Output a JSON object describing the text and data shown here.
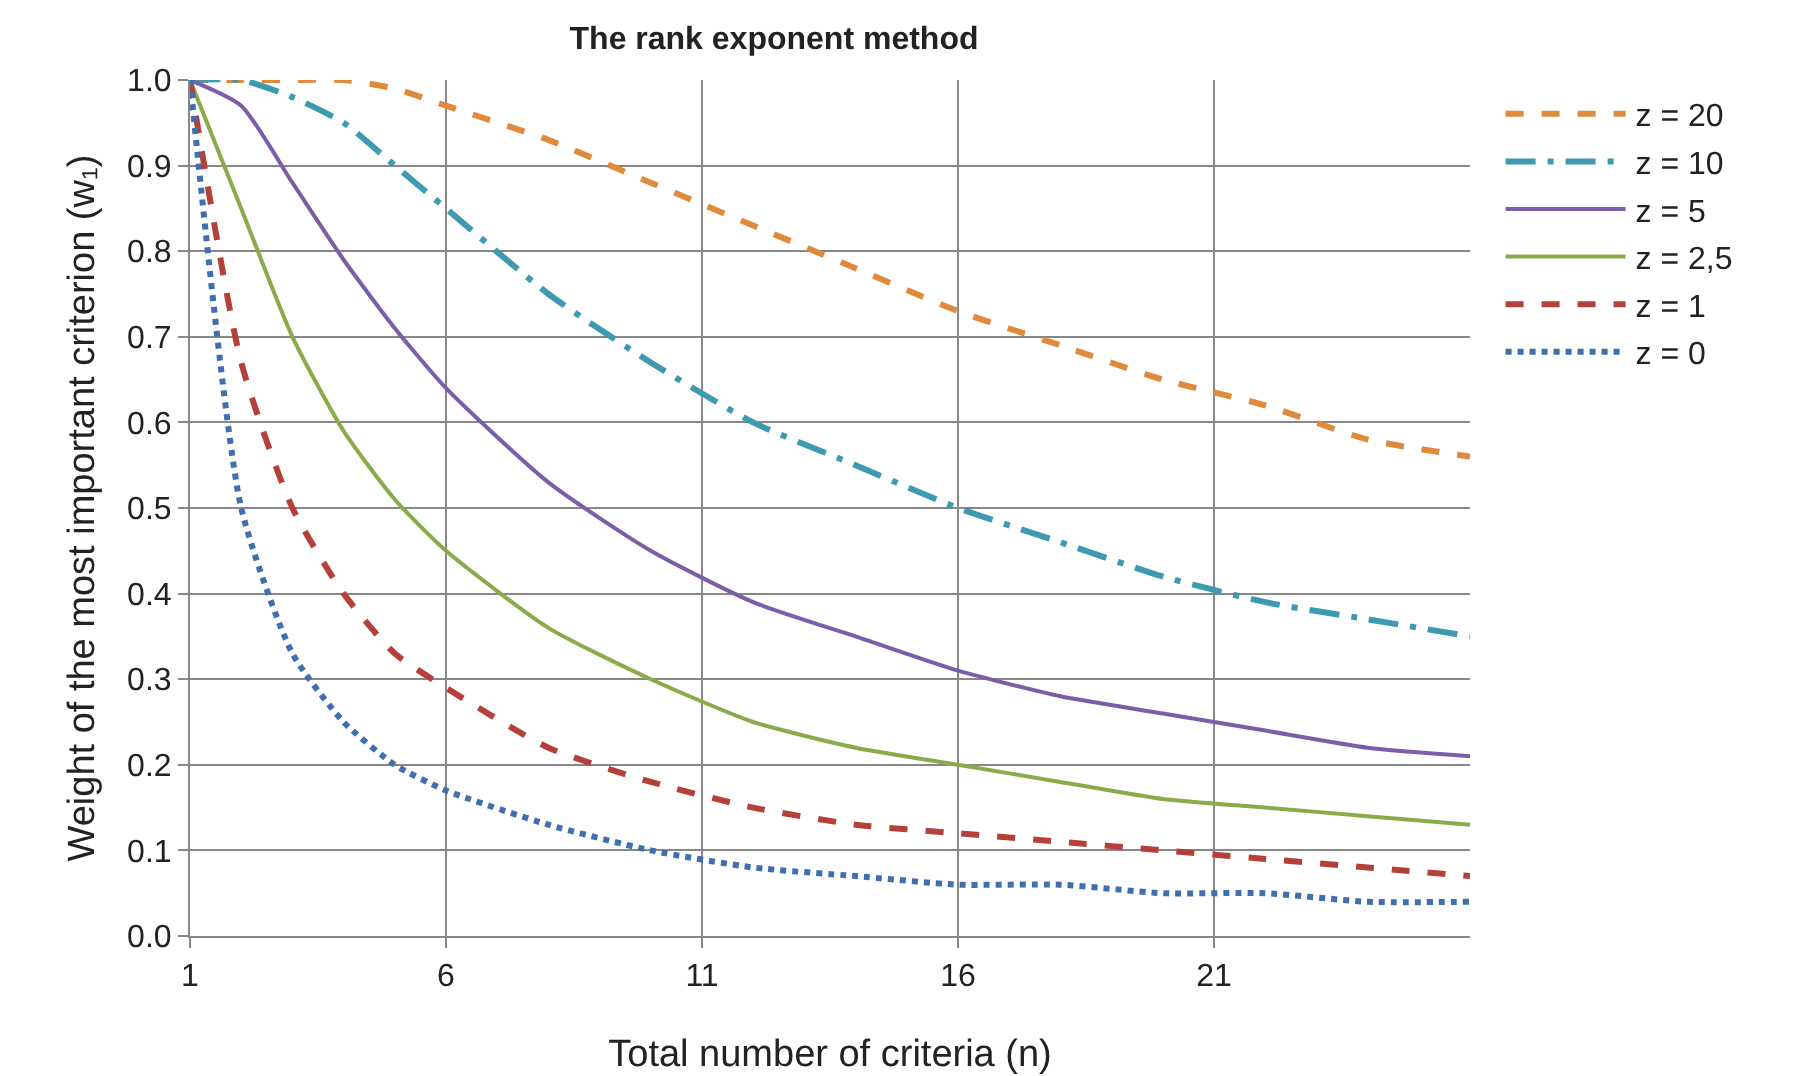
{
  "chart_data": {
    "type": "line",
    "title": "The rank exponent method",
    "xlabel": "Total number of criteria (n)",
    "ylabel": "Weight of the most important criterion (w₁)",
    "x": [
      1,
      2,
      3,
      4,
      5,
      6,
      8,
      10,
      12,
      14,
      16,
      18,
      20,
      22,
      24,
      26
    ],
    "series": [
      {
        "name": "z = 20",
        "color": "#e08a3c",
        "line_style": "dashed",
        "values": [
          1,
          1,
          1,
          1,
          0.99,
          0.97,
          0.93,
          0.88,
          0.83,
          0.78,
          0.73,
          0.69,
          0.65,
          0.62,
          0.58,
          0.56
        ]
      },
      {
        "name": "z = 10",
        "color": "#3d9ab0",
        "line_style": "dashdot",
        "values": [
          1,
          1,
          0.98,
          0.95,
          0.9,
          0.85,
          0.75,
          0.67,
          0.6,
          0.55,
          0.5,
          0.46,
          0.42,
          0.39,
          0.37,
          0.35
        ]
      },
      {
        "name": "z = 5",
        "color": "#7b5ea7",
        "line_style": "solid",
        "values": [
          1,
          0.97,
          0.88,
          0.79,
          0.71,
          0.64,
          0.53,
          0.45,
          0.39,
          0.35,
          0.31,
          0.28,
          0.26,
          0.24,
          0.22,
          0.21
        ]
      },
      {
        "name": "z = 2,5",
        "color": "#8aab4a",
        "line_style": "solid",
        "values": [
          1,
          0.85,
          0.7,
          0.59,
          0.51,
          0.45,
          0.36,
          0.3,
          0.25,
          0.22,
          0.2,
          0.18,
          0.16,
          0.15,
          0.14,
          0.13
        ]
      },
      {
        "name": "z = 1",
        "color": "#b5403a",
        "line_style": "dashed",
        "values": [
          1,
          0.67,
          0.5,
          0.4,
          0.33,
          0.29,
          0.22,
          0.18,
          0.15,
          0.13,
          0.12,
          0.11,
          0.1,
          0.09,
          0.08,
          0.07
        ]
      },
      {
        "name": "z = 0",
        "color": "#3f6fae",
        "line_style": "dotted",
        "values": [
          1,
          0.5,
          0.33,
          0.25,
          0.2,
          0.17,
          0.13,
          0.1,
          0.08,
          0.07,
          0.06,
          0.06,
          0.05,
          0.05,
          0.04,
          0.04
        ]
      }
    ],
    "xlim": [
      1,
      26
    ],
    "xticks": [
      1,
      6,
      11,
      16,
      21
    ],
    "ylim": [
      0,
      1
    ],
    "yticks": [
      {
        "value": 0,
        "label": "0.0"
      },
      0.1,
      0.2,
      0.3,
      0.4,
      0.5,
      0.6,
      0.7,
      0.8,
      0.9,
      {
        "value": 1,
        "label": "1.0"
      }
    ],
    "grid": true,
    "legend": "right",
    "marker": "none"
  }
}
